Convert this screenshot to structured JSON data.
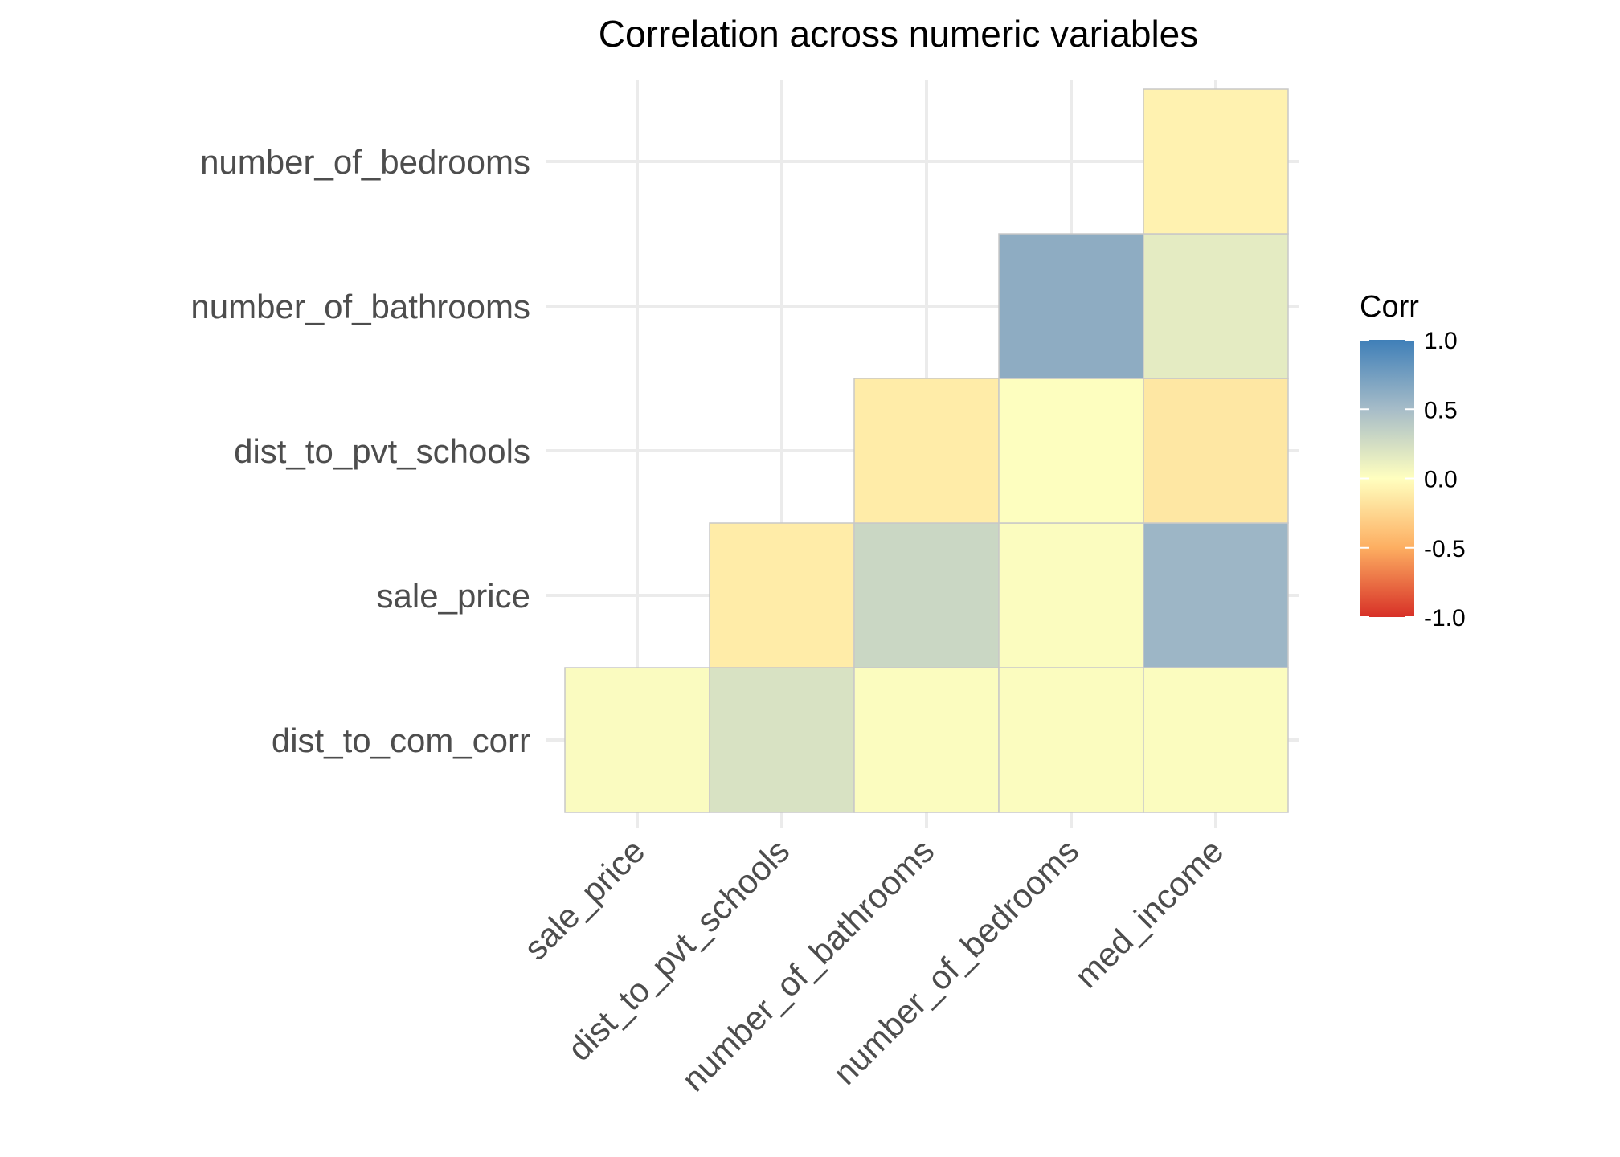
{
  "chart_data": {
    "type": "heatmap",
    "title": "Correlation across numeric variables",
    "x_categories": [
      "sale_price",
      "dist_to_pvt_schools",
      "number_of_bathrooms",
      "number_of_bedrooms",
      "med_income"
    ],
    "y_categories": [
      "dist_to_com_corr",
      "sale_price",
      "dist_to_pvt_schools",
      "number_of_bathrooms",
      "number_of_bedrooms"
    ],
    "cells": [
      {
        "x": "sale_price",
        "y": "dist_to_com_corr",
        "value": 0.03
      },
      {
        "x": "dist_to_pvt_schools",
        "y": "dist_to_com_corr",
        "value": 0.22
      },
      {
        "x": "number_of_bathrooms",
        "y": "dist_to_com_corr",
        "value": 0.02
      },
      {
        "x": "number_of_bedrooms",
        "y": "dist_to_com_corr",
        "value": 0.02
      },
      {
        "x": "med_income",
        "y": "dist_to_com_corr",
        "value": 0.02
      },
      {
        "x": "dist_to_pvt_schools",
        "y": "sale_price",
        "value": -0.12
      },
      {
        "x": "number_of_bathrooms",
        "y": "sale_price",
        "value": 0.3
      },
      {
        "x": "number_of_bedrooms",
        "y": "sale_price",
        "value": 0.02
      },
      {
        "x": "med_income",
        "y": "sale_price",
        "value": 0.55
      },
      {
        "x": "number_of_bathrooms",
        "y": "dist_to_pvt_schools",
        "value": -0.12
      },
      {
        "x": "number_of_bedrooms",
        "y": "dist_to_pvt_schools",
        "value": 0.01
      },
      {
        "x": "med_income",
        "y": "dist_to_pvt_schools",
        "value": -0.15
      },
      {
        "x": "number_of_bedrooms",
        "y": "number_of_bathrooms",
        "value": 0.63
      },
      {
        "x": "med_income",
        "y": "number_of_bathrooms",
        "value": 0.15
      },
      {
        "x": "med_income",
        "y": "number_of_bedrooms",
        "value": -0.08
      }
    ],
    "legend": {
      "title": "Corr",
      "ticks": [
        "1.0",
        "0.5",
        "0.0",
        "-0.5",
        "-1.0"
      ],
      "tick_values": [
        1.0,
        0.5,
        0.0,
        -0.5,
        -1.0
      ],
      "range": [
        -1.0,
        1.0
      ],
      "placement": "right"
    },
    "colors": {
      "low": "#d73027",
      "mid_low": "#fdae61",
      "mid": "#ffffbf",
      "mid_high": "#a6bcc8",
      "high": "#4a7fb0"
    },
    "grid": true
  }
}
